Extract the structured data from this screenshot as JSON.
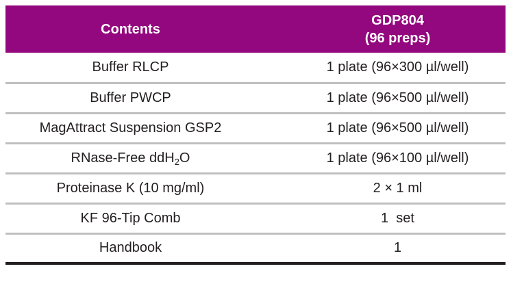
{
  "table": {
    "header": {
      "contents_label": "Contents",
      "kit_code": "GDP804",
      "kit_size": "(96 preps)"
    },
    "rows": [
      {
        "contents": [
          {
            "text": "Buffer RLCP"
          }
        ],
        "quantity": "1 plate (96×300 µl/well)"
      },
      {
        "contents": [
          {
            "text": "Buffer PWCP"
          }
        ],
        "quantity": "1 plate (96×500 µl/well)"
      },
      {
        "contents": [
          {
            "text": "MagAttract Suspension GSP2"
          }
        ],
        "quantity": "1 plate (96×500 µl/well)"
      },
      {
        "contents": [
          {
            "text": "RNase-Free ddH"
          },
          {
            "text": "2",
            "subscript": true
          },
          {
            "text": "O"
          }
        ],
        "quantity": "1 plate (96×100 µl/well)"
      },
      {
        "contents": [
          {
            "text": "Proteinase K (10 mg/ml)"
          }
        ],
        "quantity": "2 × 1 ml"
      },
      {
        "contents": [
          {
            "text": "KF 96-Tip Comb"
          }
        ],
        "quantity": "1  set"
      },
      {
        "contents": [
          {
            "text": "Handbook"
          }
        ],
        "quantity": "1"
      }
    ]
  },
  "colors": {
    "header_bg": "#93087E",
    "header_text": "#FFFFFF",
    "body_text": "#242021",
    "row_separator": "#BFBFBF",
    "bottom_border": "#231F20"
  }
}
